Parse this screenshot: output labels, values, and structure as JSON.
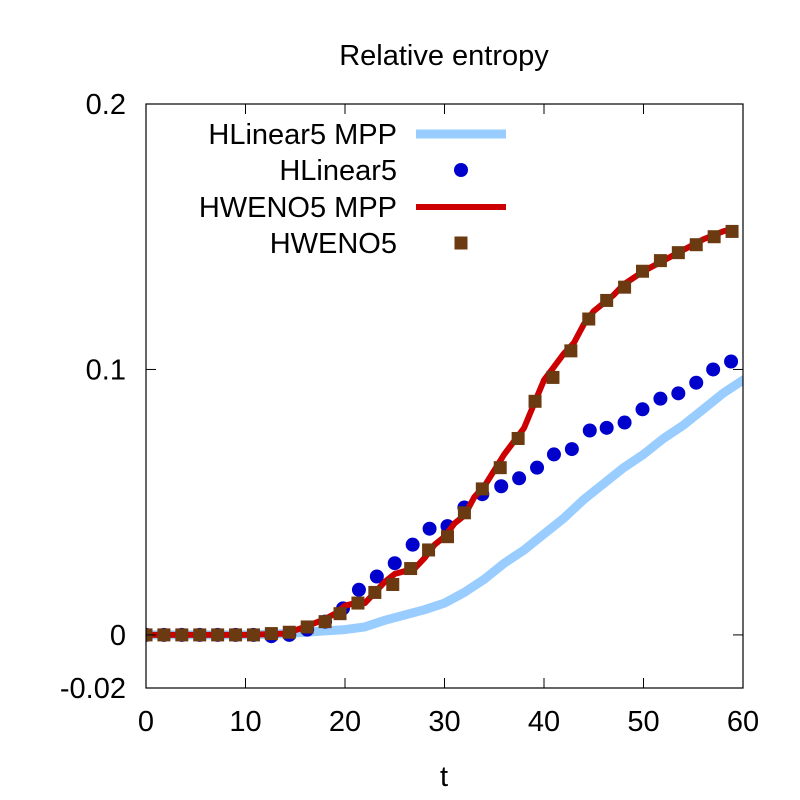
{
  "chart_data": {
    "type": "line",
    "title": "Relative entropy",
    "xlabel": "t",
    "ylabel": "",
    "xlim": [
      0,
      60
    ],
    "ylim": [
      -0.02,
      0.2
    ],
    "xticks": [
      0,
      10,
      20,
      30,
      40,
      50,
      60
    ],
    "xtick_labels": [
      "0",
      "10",
      "20",
      "30",
      "40",
      "50",
      "60"
    ],
    "yticks": [
      -0.02,
      0,
      0.1,
      0.2
    ],
    "ytick_labels": [
      "-0.02",
      "0",
      "0.1",
      "0.2"
    ],
    "grid": false,
    "legend_position": "top-left",
    "colors": {
      "hlinear_mpp": "#99ccff",
      "hlinear": "#0000cc",
      "hweno_mpp": "#cc0000",
      "hweno": "#6b3a10",
      "frame": "#000000"
    },
    "series": [
      {
        "name": "HLinear5 MPP",
        "style": "line",
        "x": [
          0,
          10,
          14,
          16,
          18,
          20,
          22,
          24,
          26,
          28,
          30,
          32,
          34,
          36,
          38,
          40,
          42,
          44,
          46,
          48,
          50,
          52,
          54,
          56,
          58,
          60
        ],
        "y": [
          0,
          0,
          0.0005,
          0.001,
          0.0015,
          0.002,
          0.003,
          0.0055,
          0.0075,
          0.0095,
          0.012,
          0.016,
          0.021,
          0.027,
          0.032,
          0.038,
          0.044,
          0.051,
          0.057,
          0.063,
          0.068,
          0.074,
          0.079,
          0.085,
          0.091,
          0.096
        ]
      },
      {
        "name": "HLinear5",
        "style": "points-circle",
        "x": [
          0,
          1.8,
          3.6,
          5.4,
          7.2,
          9.0,
          10.8,
          12.6,
          14.4,
          16.2,
          18.0,
          19.8,
          21.4,
          23.2,
          25.0,
          26.8,
          28.5,
          30.3,
          32.0,
          33.8,
          35.7,
          37.5,
          39.3,
          41.0,
          42.8,
          44.6,
          46.3,
          48.1,
          49.9,
          51.7,
          53.5,
          55.3,
          57.0,
          58.8
        ],
        "y": [
          0,
          0,
          0,
          0,
          0,
          0,
          0,
          -0.0005,
          0,
          0.002,
          0.005,
          0.01,
          0.017,
          0.022,
          0.027,
          0.034,
          0.04,
          0.041,
          0.048,
          0.053,
          0.056,
          0.059,
          0.063,
          0.068,
          0.07,
          0.077,
          0.078,
          0.08,
          0.085,
          0.089,
          0.091,
          0.095,
          0.1,
          0.103
        ]
      },
      {
        "name": "HWENO5 MPP",
        "style": "line",
        "x": [
          0,
          10,
          14,
          16,
          18,
          19,
          20,
          21,
          22,
          23,
          24,
          25,
          26,
          27,
          28,
          29,
          30,
          31,
          32,
          33,
          34,
          35,
          36,
          37,
          38,
          39,
          40,
          41,
          42,
          43,
          44,
          45,
          46,
          47,
          48,
          50,
          52,
          54,
          56,
          58,
          59
        ],
        "y": [
          0,
          0,
          0.0005,
          0.003,
          0.006,
          0.008,
          0.011,
          0.012,
          0.012,
          0.016,
          0.02,
          0.023,
          0.024,
          0.025,
          0.029,
          0.034,
          0.037,
          0.042,
          0.045,
          0.052,
          0.056,
          0.062,
          0.068,
          0.073,
          0.078,
          0.087,
          0.096,
          0.101,
          0.106,
          0.11,
          0.117,
          0.122,
          0.125,
          0.128,
          0.132,
          0.137,
          0.141,
          0.145,
          0.149,
          0.152,
          0.153
        ]
      },
      {
        "name": "HWENO5",
        "style": "points-square",
        "x": [
          0,
          1.8,
          3.6,
          5.4,
          7.2,
          9.0,
          10.8,
          12.6,
          14.4,
          16.2,
          18.0,
          19.5,
          21.3,
          23.0,
          24.8,
          26.6,
          28.4,
          30.3,
          32.0,
          33.8,
          35.6,
          37.4,
          39.1,
          40.9,
          42.7,
          44.5,
          46.3,
          48.1,
          49.9,
          51.7,
          53.5,
          55.3,
          57.1,
          58.9
        ],
        "y": [
          0,
          0,
          0,
          0,
          0,
          0,
          0,
          0.0005,
          0.001,
          0.003,
          0.005,
          0.008,
          0.012,
          0.016,
          0.019,
          0.025,
          0.032,
          0.037,
          0.046,
          0.055,
          0.063,
          0.074,
          0.088,
          0.097,
          0.107,
          0.119,
          0.126,
          0.131,
          0.137,
          0.141,
          0.144,
          0.147,
          0.15,
          0.152
        ]
      }
    ]
  }
}
